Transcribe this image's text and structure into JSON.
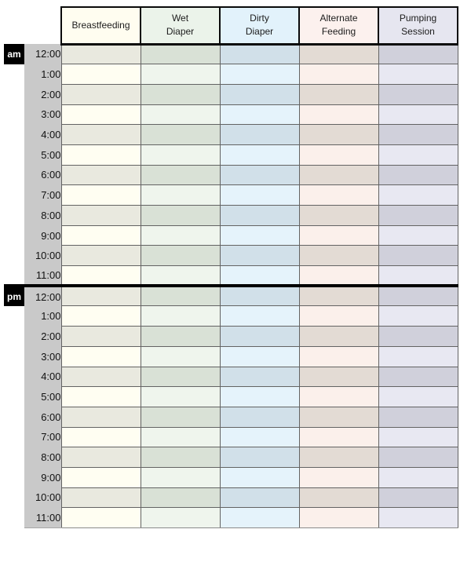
{
  "page": {
    "background": "#ffffff"
  },
  "table": {
    "time_column_bg": "#c9c9c9",
    "badge_bg": "#000000",
    "badge_text_color": "#ffffff",
    "grid_line_color": "#636363",
    "divider_color": "#000000",
    "columns": [
      {
        "label": "Breastfeeding",
        "header_bg": "#fffdf0",
        "row_light": "#fffef2",
        "row_dark": "#e9e9df"
      },
      {
        "label": "Wet\nDiaper",
        "header_bg": "#ebf3ea",
        "row_light": "#eff5ed",
        "row_dark": "#d9e1d6"
      },
      {
        "label": "Dirty\nDiaper",
        "header_bg": "#e2f2fb",
        "row_light": "#e5f3fb",
        "row_dark": "#d1e0e9"
      },
      {
        "label": "Alternate\nFeeding",
        "header_bg": "#fcf1ee",
        "row_light": "#fbf0eb",
        "row_dark": "#e3dbd4"
      },
      {
        "label": "Pumping\nSession",
        "header_bg": "#e6e6f0",
        "row_light": "#e8e8f2",
        "row_dark": "#d0d0db"
      }
    ],
    "periods": [
      {
        "label": "am",
        "times": [
          "12:00",
          "1:00",
          "2:00",
          "3:00",
          "4:00",
          "5:00",
          "6:00",
          "7:00",
          "8:00",
          "9:00",
          "10:00",
          "11:00"
        ]
      },
      {
        "label": "pm",
        "times": [
          "12:00",
          "1:00",
          "2:00",
          "3:00",
          "4:00",
          "5:00",
          "6:00",
          "7:00",
          "8:00",
          "9:00",
          "10:00",
          "11:00"
        ]
      }
    ]
  }
}
